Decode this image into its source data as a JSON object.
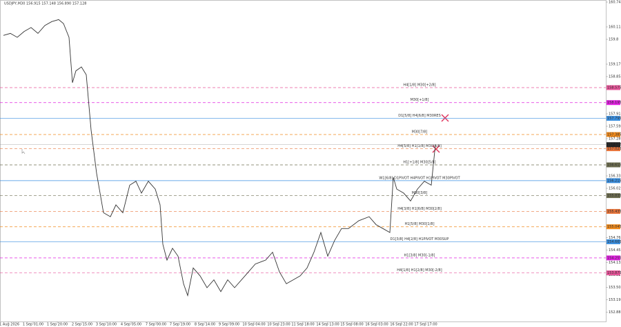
{
  "chart_data": {
    "type": "line",
    "title": "USDJPY,M30  156.915 157.148 156.890 157.128",
    "x": [
      5,
      15,
      25,
      35,
      45,
      55,
      65,
      75,
      85,
      92,
      100,
      105,
      110,
      118,
      125,
      132,
      140,
      150,
      160,
      168,
      178,
      188,
      197,
      205,
      215,
      225,
      232,
      236,
      242,
      250,
      258,
      266,
      272,
      280,
      290,
      300,
      310,
      320,
      330,
      340,
      355,
      370,
      385,
      395,
      405,
      415,
      425,
      435,
      445,
      455,
      465,
      475,
      485,
      495,
      505,
      520,
      535,
      545,
      555,
      565,
      570,
      575,
      585,
      595,
      605,
      615,
      625,
      631
    ],
    "series": [
      {
        "name": "USDJPY,M30",
        "color": "#333333",
        "values": [
          159.9,
          159.95,
          159.85,
          160.0,
          160.1,
          159.95,
          160.15,
          160.25,
          160.3,
          160.2,
          159.85,
          158.7,
          159.0,
          159.1,
          158.9,
          157.5,
          156.4,
          155.4,
          155.3,
          155.6,
          155.4,
          156.1,
          156.2,
          155.9,
          156.2,
          156.0,
          155.6,
          154.6,
          154.2,
          154.5,
          154.3,
          153.6,
          153.3,
          154.0,
          153.8,
          153.5,
          153.7,
          153.4,
          153.7,
          153.5,
          153.8,
          154.1,
          154.2,
          154.4,
          153.9,
          153.6,
          153.7,
          153.8,
          154.0,
          154.4,
          154.9,
          154.3,
          154.7,
          155.0,
          155.0,
          155.2,
          155.3,
          155.1,
          155.0,
          154.9,
          156.3,
          156.0,
          155.9,
          155.7,
          156.0,
          156.2,
          156.1,
          157.128
        ]
      }
    ],
    "xlim": [
      0,
      878
    ],
    "xticks": [
      {
        "value": 12,
        "label": "31 Aug 2026"
      },
      {
        "value": 48,
        "label": "1 Sep 01:00"
      },
      {
        "value": 83,
        "label": "1 Sep 20:00"
      },
      {
        "value": 119,
        "label": "2 Sep 15:00"
      },
      {
        "value": 154,
        "label": "3 Sep 10:00"
      },
      {
        "value": 190,
        "label": "4 Sep 05:00"
      },
      {
        "value": 226,
        "label": "7 Sep 00:00"
      },
      {
        "value": 261,
        "label": "7 Sep 19:00"
      },
      {
        "value": 297,
        "label": "8 Sep 14:00"
      },
      {
        "value": 332,
        "label": "9 Sep 09:00"
      },
      {
        "value": 368,
        "label": "10 Sep 04:00"
      },
      {
        "value": 404,
        "label": "10 Sep 23:00"
      },
      {
        "value": 439,
        "label": "11 Sep 18:00"
      },
      {
        "value": 475,
        "label": "14 Sep 13:00"
      },
      {
        "value": 510,
        "label": "15 Sep 08:00"
      },
      {
        "value": 546,
        "label": "16 Sep 03:00"
      },
      {
        "value": 582,
        "label": "16 Sep 22:00"
      },
      {
        "value": 617,
        "label": "17 Sep 17:00"
      }
    ],
    "ylim": [
      152.6425,
      160.7975
    ],
    "yticks": [
      160.745,
      160.115,
      159.8,
      159.17,
      158.855,
      157.91,
      157.595,
      157.28,
      156.335,
      156.02,
      154.765,
      154.45,
      154.135,
      153.82,
      153.505,
      153.19,
      152.88
    ],
    "current_price": 157.128,
    "levels": [
      {
        "label": "H4[1/8] M30[+2/8]",
        "value": 158.575,
        "color": "#e8559a",
        "dash": true
      },
      {
        "label": "M30[+1/8]",
        "value": 158.195,
        "color": "#e020e0",
        "dash": true
      },
      {
        "label": "D1[5/8] H4[6/8] M30RES",
        "value": 157.795,
        "color": "#3a8fe0",
        "dash": false
      },
      {
        "label": "M30[7/8]",
        "value": 157.385,
        "color": "#f08a1c",
        "dash": true
      },
      {
        "label": "H4[5/8] H1[1/8] M30[6/8]",
        "value": 157.025,
        "color": "#e8743a",
        "dash": true
      },
      {
        "label": "H1[+1/8] M30[5/8]",
        "value": 156.615,
        "color": "#6e6e50",
        "dash": true
      },
      {
        "label": "W1[6/8] D1PIVOT H4PIVOT H1PIVOT M30PIVOT",
        "value": 156.215,
        "color": "#3a8fe0",
        "dash": false
      },
      {
        "label": "M30[3/8]",
        "value": 155.835,
        "color": "#6e6e50",
        "dash": true
      },
      {
        "label": "H4[3/8] H1[6/8] M30[2/8]",
        "value": 155.435,
        "color": "#e8743a",
        "dash": true
      },
      {
        "label": "H1[5/8] M30[1/8]",
        "value": 155.045,
        "color": "#f08a1c",
        "dash": true
      },
      {
        "label": "D1[3/8] H4[2/8] H1PIVOT M30SUP",
        "value": 154.665,
        "color": "#3a8fe0",
        "dash": false
      },
      {
        "label": "H1[3/8] M30[-1/8]",
        "value": 154.255,
        "color": "#e020e0",
        "dash": true
      },
      {
        "label": "H4[1/8] H1[2/8] M30[-2/8]",
        "value": 153.875,
        "color": "#e8559a",
        "dash": true
      }
    ]
  }
}
